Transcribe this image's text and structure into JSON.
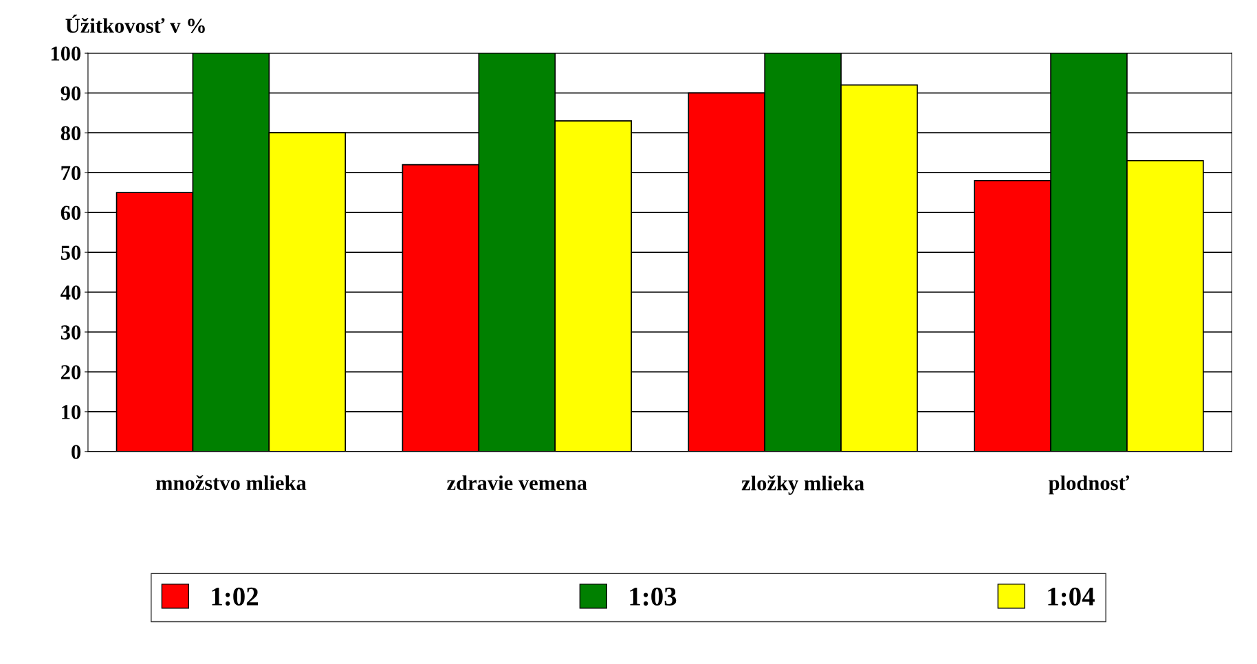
{
  "chart_data": {
    "type": "bar",
    "ylabel": "Úžitkovosť v %",
    "categories": [
      "množstvo mlieka",
      "zdravie vemena",
      "zložky mlieka",
      "plodnosť"
    ],
    "series": [
      {
        "name": "1:02",
        "color": "#ff0000",
        "values": [
          65,
          72,
          90,
          68
        ]
      },
      {
        "name": "1:03",
        "color": "#008000",
        "values": [
          100,
          100,
          100,
          100
        ]
      },
      {
        "name": "1:04",
        "color": "#ffff00",
        "values": [
          80,
          83,
          92,
          73
        ]
      }
    ],
    "ylim": [
      0,
      100
    ],
    "yticks": [
      0,
      10,
      20,
      30,
      40,
      50,
      60,
      70,
      80,
      90,
      100
    ],
    "grid": "y",
    "legend": "bottom"
  }
}
